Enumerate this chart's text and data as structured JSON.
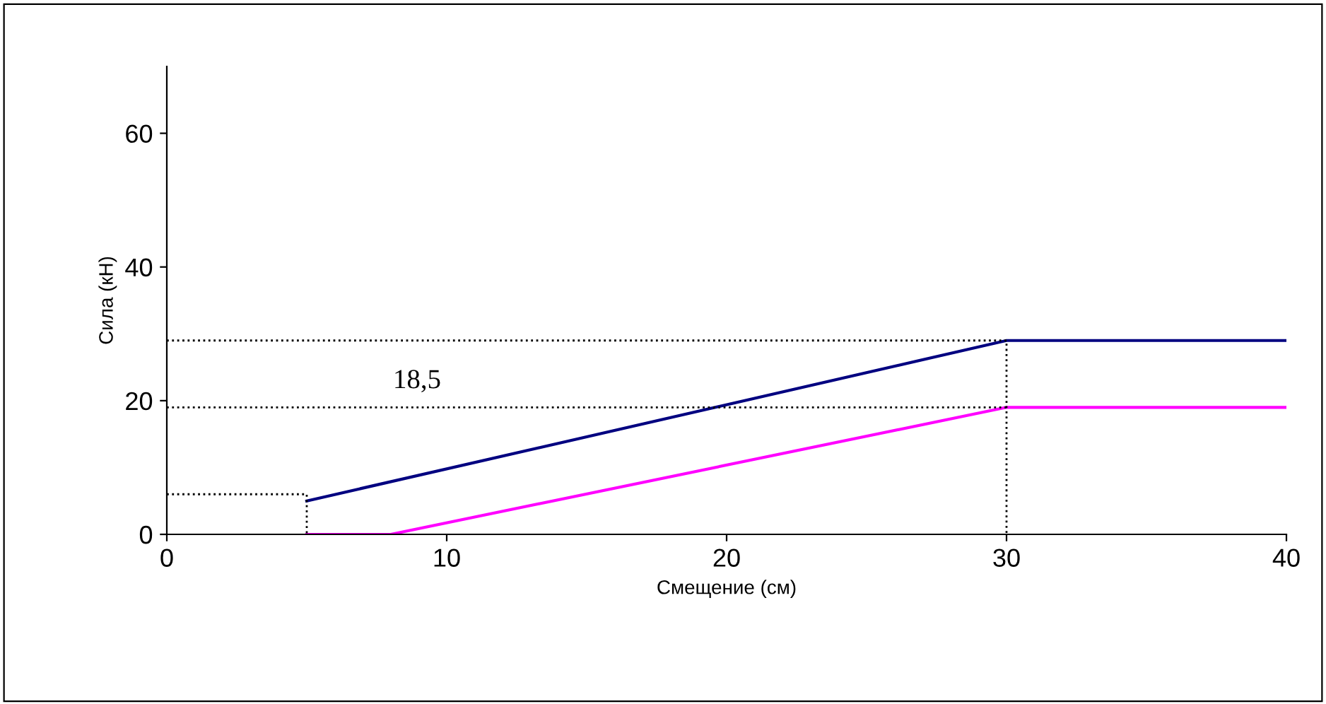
{
  "chart_data": {
    "type": "line",
    "xlabel": "Смещение (см)",
    "ylabel": "Сила (кН)",
    "xlim": [
      0,
      40
    ],
    "xticks": [
      0,
      10,
      20,
      30,
      40
    ],
    "ylim": [
      0,
      70
    ],
    "yticks": [
      0,
      20,
      40,
      60
    ],
    "grid": false,
    "legend": false,
    "marker": "none",
    "series": [
      {
        "color": "#000080",
        "x": [
          5,
          30,
          40
        ],
        "values": [
          5,
          29,
          29
        ]
      },
      {
        "color": "#ff00ff",
        "x": [
          5,
          8,
          30,
          40
        ],
        "values": [
          0,
          0,
          19,
          19
        ]
      },
      {
        "color": "#000000",
        "line_style": "dotted",
        "x": [
          0,
          30,
          30
        ],
        "values": [
          29,
          29,
          0
        ]
      },
      {
        "color": "#000000",
        "line_style": "dotted",
        "x": [
          0,
          30
        ],
        "values": [
          19,
          19
        ]
      },
      {
        "color": "#000000",
        "line_style": "dotted",
        "x": [
          0,
          5,
          5
        ],
        "values": [
          6,
          6,
          0
        ]
      }
    ],
    "annotations": [
      "18,5"
    ]
  }
}
